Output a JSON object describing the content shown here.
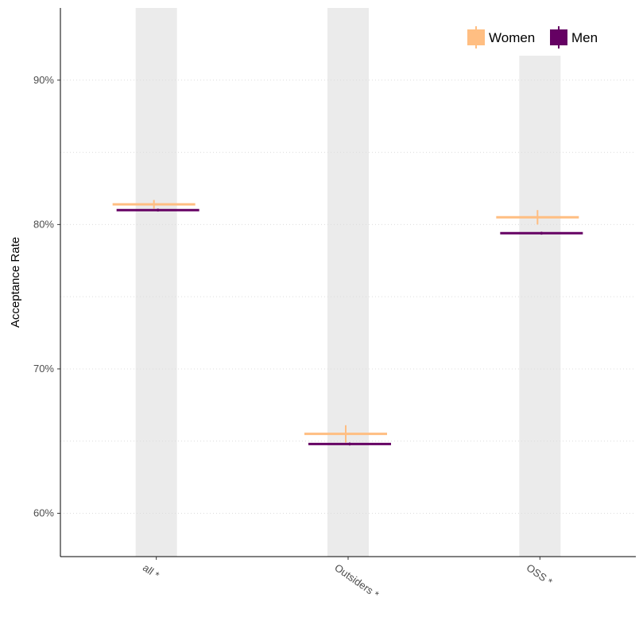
{
  "chart_data": {
    "type": "errorbar",
    "ylabel": "Acceptance Rate",
    "xlabel": "",
    "ylim": [
      0.57,
      0.95
    ],
    "yticks": [
      0.6,
      0.7,
      0.8,
      0.9
    ],
    "ytick_labels": [
      "60%",
      "70%",
      "80%",
      "90%"
    ],
    "grid": "dotted horizontal",
    "legend_position": "top-right",
    "categories": [
      "all *",
      "Outsiders *",
      "OSS *"
    ],
    "series": [
      {
        "name": "Women",
        "color": "#ffbe82",
        "values": [
          0.814,
          0.655,
          0.805
        ],
        "errors": [
          0.003,
          0.006,
          0.005
        ]
      },
      {
        "name": "Men",
        "color": "#650163",
        "values": [
          0.81,
          0.648,
          0.794
        ],
        "errors": [
          0.001,
          0.001,
          0.001
        ]
      }
    ],
    "band_color": "#ebebeb"
  }
}
